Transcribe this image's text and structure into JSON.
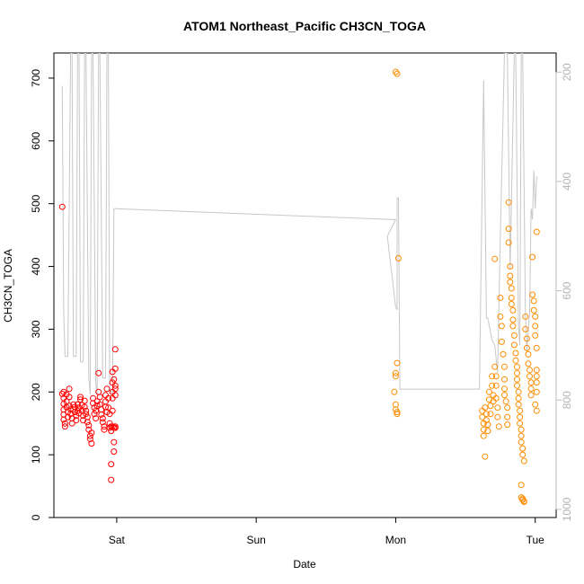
{
  "chart_data": {
    "type": "scatter",
    "title": "ATOM1 Northeast_Pacific CH3CN_TOGA",
    "xlabel": "Date",
    "ylabel": "CH3CN_TOGA",
    "x_units": "days (0 = Sat 00:00)",
    "xlim": [
      -0.45,
      3.15
    ],
    "ylim": [
      0,
      740
    ],
    "x_ticks": [
      {
        "value": 0,
        "label": "Sat"
      },
      {
        "value": 1,
        "label": "Sun"
      },
      {
        "value": 2,
        "label": "Mon"
      },
      {
        "value": 3,
        "label": "Tue"
      }
    ],
    "y_ticks": [
      0,
      100,
      200,
      300,
      400,
      500,
      600,
      700
    ],
    "y2": {
      "description": "pressure (right axis, inverted)",
      "ylim": [
        1015,
        165
      ],
      "ticks": [
        200,
        400,
        600,
        800,
        1000
      ],
      "color": "#bdbdbd"
    },
    "colors": {
      "series_day1": "#ff0000",
      "series_day2": "#ff8c00",
      "pressure_line": "#c8c8c8"
    },
    "series": [
      {
        "color": "#ff0000",
        "points": [
          [
            -0.39,
            495
          ],
          [
            -0.39,
            197
          ],
          [
            -0.38,
            200
          ],
          [
            -0.38,
            190
          ],
          [
            -0.38,
            181
          ],
          [
            -0.38,
            172
          ],
          [
            -0.38,
            164
          ],
          [
            -0.38,
            156
          ],
          [
            -0.37,
            150
          ],
          [
            -0.37,
            145
          ],
          [
            -0.36,
            196
          ],
          [
            -0.36,
            185
          ],
          [
            -0.36,
            176
          ],
          [
            -0.35,
            168
          ],
          [
            -0.35,
            160
          ],
          [
            -0.34,
            205
          ],
          [
            -0.34,
            192
          ],
          [
            -0.34,
            178
          ],
          [
            -0.33,
            172
          ],
          [
            -0.33,
            165
          ],
          [
            -0.32,
            158
          ],
          [
            -0.32,
            150
          ],
          [
            -0.31,
            180
          ],
          [
            -0.31,
            172
          ],
          [
            -0.3,
            176
          ],
          [
            -0.3,
            168
          ],
          [
            -0.29,
            162
          ],
          [
            -0.29,
            155
          ],
          [
            -0.28,
            170
          ],
          [
            -0.28,
            180
          ],
          [
            -0.27,
            175
          ],
          [
            -0.27,
            166
          ],
          [
            -0.26,
            188
          ],
          [
            -0.26,
            192
          ],
          [
            -0.25,
            179
          ],
          [
            -0.25,
            170
          ],
          [
            -0.24,
            162
          ],
          [
            -0.24,
            155
          ],
          [
            -0.23,
            186
          ],
          [
            -0.23,
            176
          ],
          [
            -0.22,
            170
          ],
          [
            -0.22,
            165
          ],
          [
            -0.21,
            160
          ],
          [
            -0.21,
            152
          ],
          [
            -0.2,
            147
          ],
          [
            -0.2,
            140
          ],
          [
            -0.19,
            130
          ],
          [
            -0.19,
            125
          ],
          [
            -0.18,
            118
          ],
          [
            -0.18,
            135
          ],
          [
            -0.17,
            190
          ],
          [
            -0.17,
            182
          ],
          [
            -0.16,
            175
          ],
          [
            -0.16,
            165
          ],
          [
            -0.15,
            158
          ],
          [
            -0.15,
            170
          ],
          [
            -0.14,
            178
          ],
          [
            -0.14,
            185
          ],
          [
            -0.13,
            230
          ],
          [
            -0.13,
            200
          ],
          [
            -0.12,
            192
          ],
          [
            -0.12,
            180
          ],
          [
            -0.11,
            172
          ],
          [
            -0.11,
            164
          ],
          [
            -0.1,
            158
          ],
          [
            -0.1,
            152
          ],
          [
            -0.09,
            145
          ],
          [
            -0.09,
            140
          ],
          [
            -0.08,
            195
          ],
          [
            -0.08,
            185
          ],
          [
            -0.08,
            176
          ],
          [
            -0.07,
            168
          ],
          [
            -0.07,
            205
          ],
          [
            -0.06,
            190
          ],
          [
            -0.06,
            175
          ],
          [
            -0.05,
            165
          ],
          [
            -0.05,
            150
          ],
          [
            -0.05,
            143
          ],
          [
            -0.04,
            138
          ],
          [
            -0.04,
            145
          ],
          [
            -0.04,
            85
          ],
          [
            -0.04,
            60
          ],
          [
            -0.03,
            232
          ],
          [
            -0.03,
            215
          ],
          [
            -0.03,
            200
          ],
          [
            -0.03,
            190
          ],
          [
            -0.03,
            170
          ],
          [
            -0.03,
            145
          ],
          [
            -0.02,
            143
          ],
          [
            -0.02,
            120
          ],
          [
            -0.02,
            105
          ],
          [
            -0.02,
            220
          ],
          [
            -0.01,
            237
          ],
          [
            -0.01,
            210
          ],
          [
            -0.01,
            205
          ],
          [
            -0.01,
            195
          ],
          [
            -0.01,
            268
          ],
          [
            -0.01,
            145
          ],
          [
            -0.01,
            143
          ]
        ]
      },
      {
        "color": "#ff8c00",
        "points": [
          [
            2.0,
            710
          ],
          [
            2.01,
            707
          ],
          [
            2.02,
            413
          ],
          [
            2.01,
            246
          ],
          [
            2.0,
            230
          ],
          [
            2.0,
            225
          ],
          [
            1.99,
            200
          ],
          [
            2.0,
            180
          ],
          [
            2.0,
            172
          ],
          [
            2.01,
            168
          ],
          [
            2.01,
            165
          ],
          [
            2.62,
            170
          ],
          [
            2.62,
            160
          ],
          [
            2.63,
            150
          ],
          [
            2.63,
            140
          ],
          [
            2.63,
            130
          ],
          [
            2.64,
            97
          ],
          [
            2.64,
            175
          ],
          [
            2.65,
            165
          ],
          [
            2.65,
            155
          ],
          [
            2.66,
            148
          ],
          [
            2.66,
            138
          ],
          [
            2.67,
            200
          ],
          [
            2.67,
            188
          ],
          [
            2.68,
            178
          ],
          [
            2.68,
            165
          ],
          [
            2.69,
            225
          ],
          [
            2.69,
            210
          ],
          [
            2.7,
            195
          ],
          [
            2.7,
            185
          ],
          [
            2.71,
            412
          ],
          [
            2.71,
            240
          ],
          [
            2.72,
            225
          ],
          [
            2.72,
            210
          ],
          [
            2.72,
            190
          ],
          [
            2.73,
            175
          ],
          [
            2.73,
            160
          ],
          [
            2.74,
            145
          ],
          [
            2.75,
            350
          ],
          [
            2.75,
            320
          ],
          [
            2.76,
            305
          ],
          [
            2.76,
            280
          ],
          [
            2.77,
            260
          ],
          [
            2.78,
            240
          ],
          [
            2.78,
            220
          ],
          [
            2.78,
            205
          ],
          [
            2.78,
            195
          ],
          [
            2.79,
            185
          ],
          [
            2.8,
            175
          ],
          [
            2.8,
            160
          ],
          [
            2.8,
            148
          ],
          [
            2.81,
            502
          ],
          [
            2.81,
            460
          ],
          [
            2.81,
            438
          ],
          [
            2.82,
            400
          ],
          [
            2.82,
            385
          ],
          [
            2.82,
            375
          ],
          [
            2.83,
            365
          ],
          [
            2.83,
            350
          ],
          [
            2.83,
            340
          ],
          [
            2.84,
            330
          ],
          [
            2.84,
            315
          ],
          [
            2.84,
            305
          ],
          [
            2.85,
            290
          ],
          [
            2.85,
            275
          ],
          [
            2.86,
            262
          ],
          [
            2.86,
            250
          ],
          [
            2.87,
            240
          ],
          [
            2.87,
            230
          ],
          [
            2.87,
            220
          ],
          [
            2.87,
            210
          ],
          [
            2.88,
            200
          ],
          [
            2.88,
            190
          ],
          [
            2.88,
            180
          ],
          [
            2.89,
            170
          ],
          [
            2.89,
            160
          ],
          [
            2.89,
            150
          ],
          [
            2.9,
            140
          ],
          [
            2.9,
            130
          ],
          [
            2.9,
            120
          ],
          [
            2.91,
            110
          ],
          [
            2.91,
            100
          ],
          [
            2.92,
            90
          ],
          [
            2.9,
            52
          ],
          [
            2.9,
            32
          ],
          [
            2.91,
            30
          ],
          [
            2.91,
            28
          ],
          [
            2.92,
            26
          ],
          [
            2.92,
            25
          ],
          [
            2.93,
            320
          ],
          [
            2.93,
            300
          ],
          [
            2.94,
            285
          ],
          [
            2.94,
            270
          ],
          [
            2.95,
            260
          ],
          [
            2.95,
            245
          ],
          [
            2.96,
            235
          ],
          [
            2.96,
            225
          ],
          [
            2.97,
            215
          ],
          [
            2.97,
            205
          ],
          [
            2.97,
            195
          ],
          [
            2.98,
            415
          ],
          [
            2.98,
            355
          ],
          [
            2.99,
            345
          ],
          [
            2.99,
            330
          ],
          [
            3.0,
            320
          ],
          [
            3.0,
            305
          ],
          [
            3.0,
            290
          ],
          [
            3.01,
            270
          ],
          [
            3.01,
            455
          ],
          [
            3.01,
            235
          ],
          [
            3.01,
            225
          ],
          [
            3.01,
            215
          ],
          [
            3.01,
            200
          ],
          [
            3.01,
            170
          ],
          [
            3.0,
            180
          ]
        ]
      }
    ],
    "pressure_line_hPa": [
      [
        -0.39,
        225
      ],
      [
        -0.38,
        640
      ],
      [
        -0.37,
        720
      ],
      [
        -0.36,
        720
      ],
      [
        -0.35,
        720
      ],
      [
        -0.33,
        165
      ],
      [
        -0.32,
        165
      ],
      [
        -0.31,
        720
      ],
      [
        -0.29,
        720
      ],
      [
        -0.28,
        165
      ],
      [
        -0.27,
        165
      ],
      [
        -0.26,
        730
      ],
      [
        -0.24,
        730
      ],
      [
        -0.23,
        165
      ],
      [
        -0.22,
        165
      ],
      [
        -0.2,
        760
      ],
      [
        -0.19,
        790
      ],
      [
        -0.18,
        165
      ],
      [
        -0.17,
        165
      ],
      [
        -0.15,
        770
      ],
      [
        -0.14,
        790
      ],
      [
        -0.13,
        165
      ],
      [
        -0.12,
        165
      ],
      [
        -0.1,
        760
      ],
      [
        -0.08,
        760
      ],
      [
        -0.07,
        165
      ],
      [
        -0.06,
        165
      ],
      [
        -0.05,
        780
      ],
      [
        -0.03,
        790
      ],
      [
        -0.02,
        450
      ],
      [
        -0.01,
        450
      ],
      [
        2.0,
        470
      ],
      [
        1.94,
        500
      ],
      [
        2.0,
        630
      ],
      [
        2.01,
        635
      ],
      [
        2.01,
        430
      ],
      [
        2.02,
        430
      ],
      [
        2.03,
        780
      ],
      [
        2.6,
        780
      ],
      [
        2.63,
        215
      ],
      [
        2.65,
        650
      ],
      [
        2.66,
        650
      ],
      [
        2.69,
        690
      ],
      [
        2.71,
        700
      ],
      [
        2.73,
        750
      ],
      [
        2.75,
        500
      ],
      [
        2.78,
        165
      ],
      [
        2.8,
        165
      ],
      [
        2.82,
        560
      ],
      [
        2.85,
        165
      ],
      [
        2.86,
        165
      ],
      [
        2.88,
        665
      ],
      [
        2.89,
        700
      ],
      [
        2.9,
        165
      ],
      [
        2.91,
        165
      ],
      [
        2.93,
        640
      ],
      [
        2.94,
        710
      ],
      [
        2.96,
        640
      ],
      [
        2.97,
        450
      ],
      [
        2.98,
        470
      ],
      [
        2.99,
        380
      ],
      [
        3.0,
        450
      ],
      [
        3.01,
        390
      ]
    ]
  }
}
